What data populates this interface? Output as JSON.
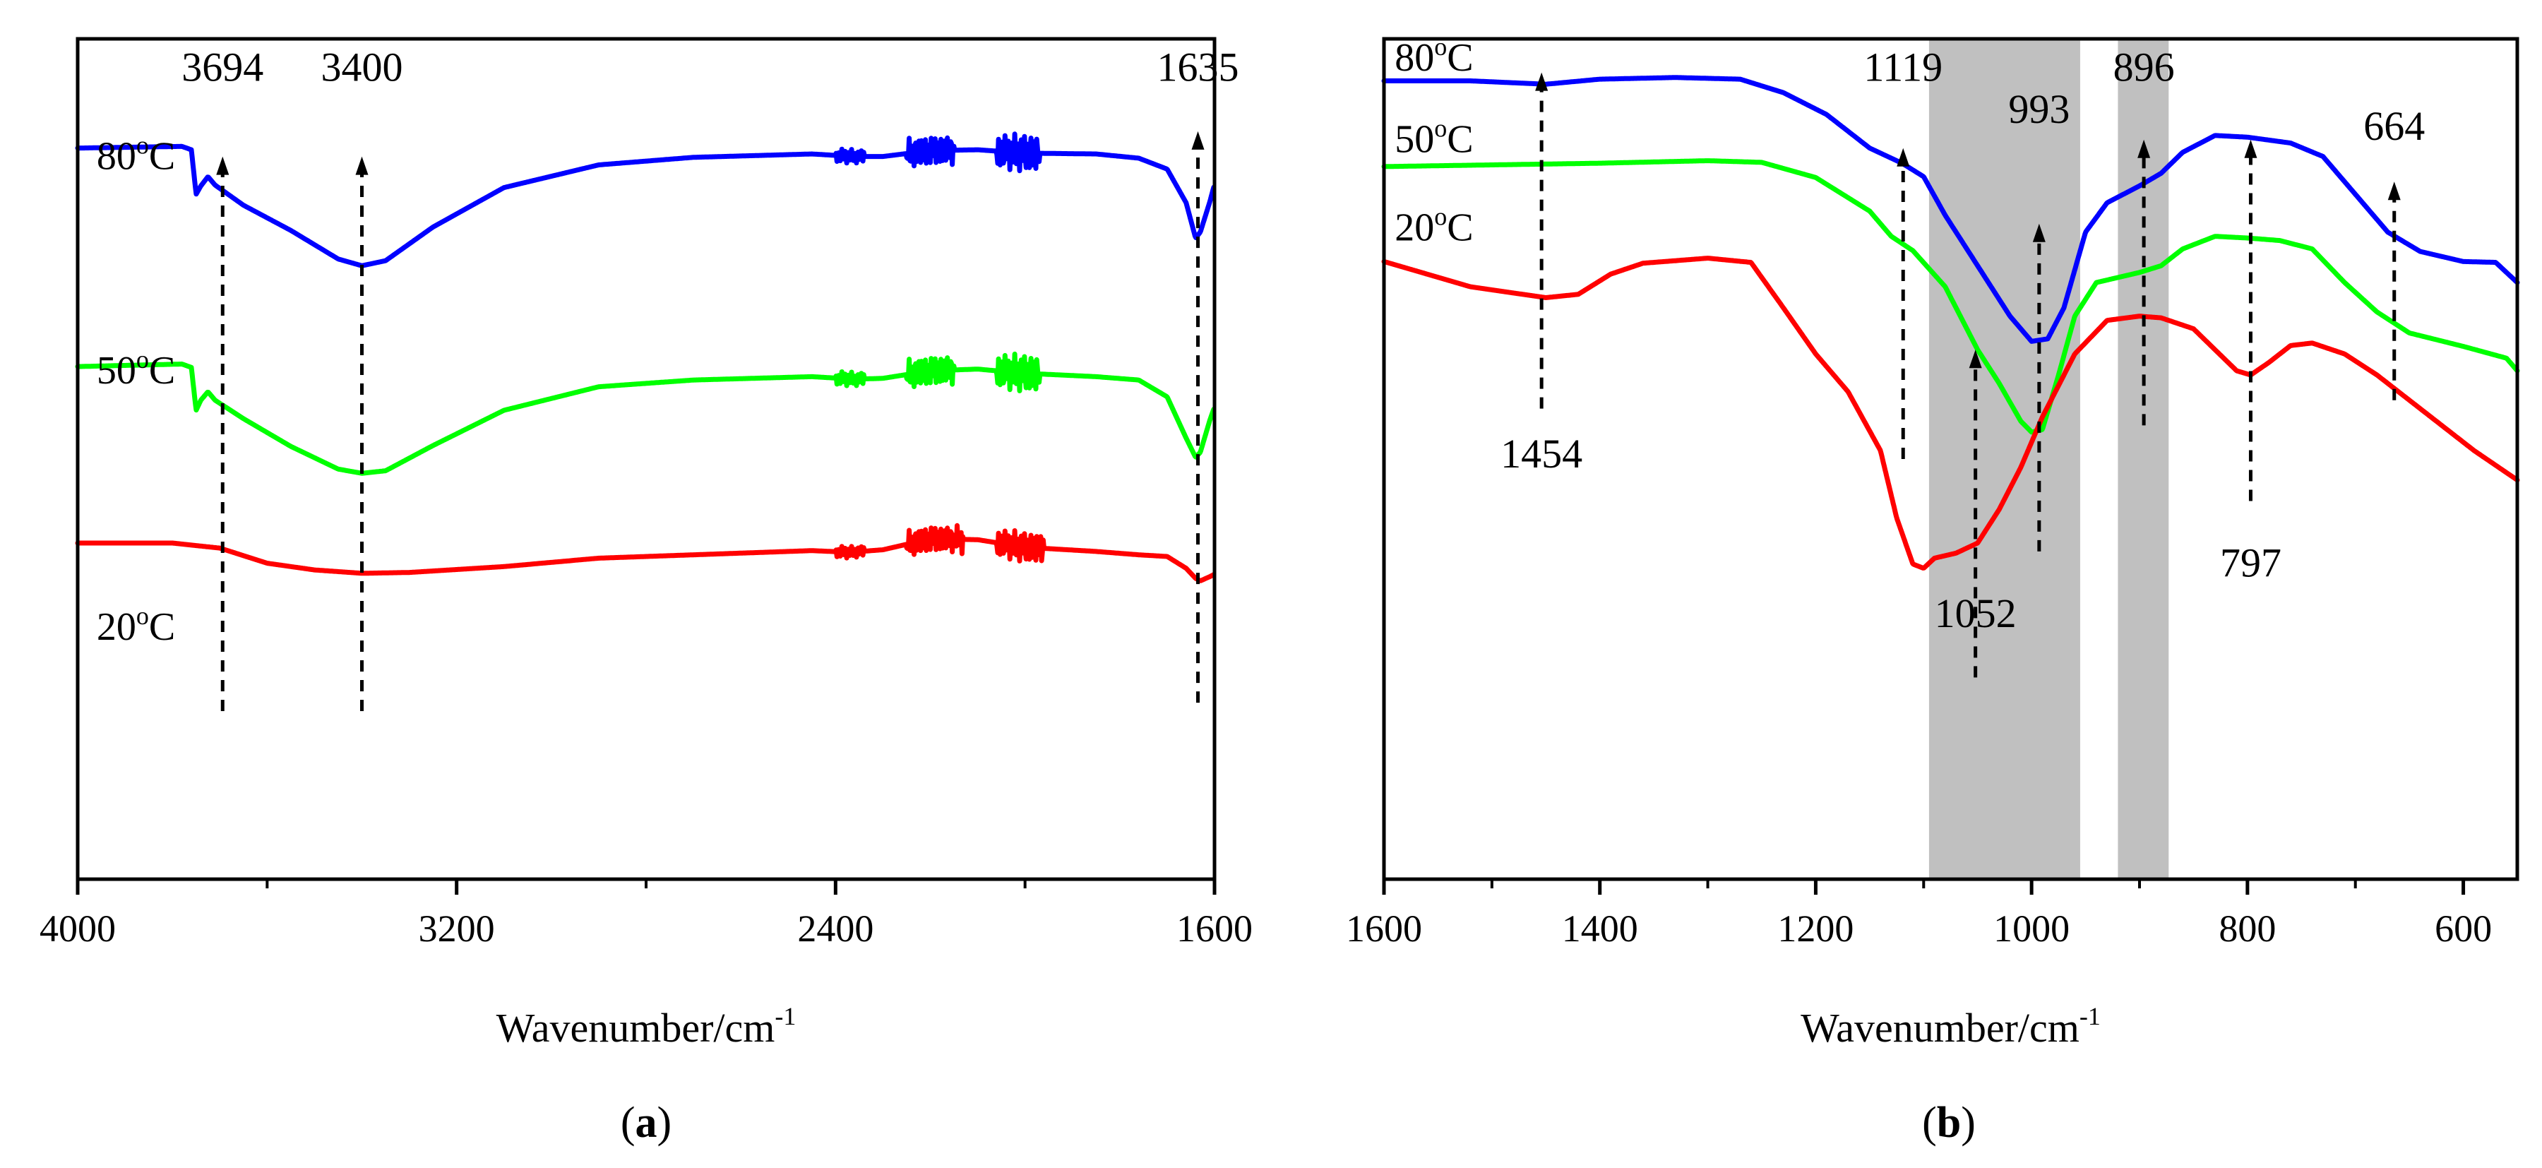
{
  "chart_data": [
    {
      "panel": "(a)",
      "panel_open": "(",
      "panel_letter": "a",
      "panel_close": ")",
      "type": "line",
      "xlabel_main": "Wavenumber/cm",
      "xlabel_sup": "-1",
      "ylabel": "",
      "xlim": [
        4000,
        1600
      ],
      "x_ticks": [
        4000,
        3200,
        2400,
        1600
      ],
      "x_tick_labels": [
        "4000",
        "3200",
        "2400",
        "1600"
      ],
      "x_minor_ticks": [
        3600,
        2800,
        2000
      ],
      "y_ticks_visible": false,
      "ylim": [
        0,
        100
      ],
      "series": [
        {
          "name": "80°C",
          "label_base": "80",
          "label_deg": "o",
          "label_unit": "C",
          "color": "#0000ff",
          "points": [
            [
              4000,
              87
            ],
            [
              3780,
              87.2
            ],
            [
              3760,
              86.8
            ],
            [
              3750,
              81.5
            ],
            [
              3740,
              82.5
            ],
            [
              3725,
              83.6
            ],
            [
              3710,
              82.6
            ],
            [
              3650,
              80.2
            ],
            [
              3550,
              77.2
            ],
            [
              3450,
              73.8
            ],
            [
              3400,
              73.0
            ],
            [
              3350,
              73.6
            ],
            [
              3250,
              77.6
            ],
            [
              3100,
              82.3
            ],
            [
              2900,
              85.0
            ],
            [
              2700,
              85.9
            ],
            [
              2450,
              86.3
            ],
            [
              2360,
              86.0
            ],
            [
              2300,
              86.0
            ],
            [
              2200,
              86.7
            ],
            [
              2100,
              86.8
            ],
            [
              2000,
              86.4
            ],
            [
              1850,
              86.3
            ],
            [
              1760,
              85.8
            ],
            [
              1700,
              84.5
            ],
            [
              1660,
              80.5
            ],
            [
              1640,
              76.3
            ],
            [
              1630,
              77.0
            ],
            [
              1610,
              80.6
            ],
            [
              1600,
              82.7
            ]
          ],
          "noise": [
            [
              2340,
              2400,
              0.6
            ],
            [
              2150,
              2250,
              1.8
            ],
            [
              1970,
              2060,
              1.6
            ]
          ]
        },
        {
          "name": "50°C",
          "label_base": "50",
          "label_deg": "o",
          "label_unit": "C",
          "color": "#00ff00",
          "points": [
            [
              4000,
              61
            ],
            [
              3780,
              61.3
            ],
            [
              3760,
              60.9
            ],
            [
              3750,
              55.8
            ],
            [
              3740,
              57.0
            ],
            [
              3725,
              58.0
            ],
            [
              3710,
              57.0
            ],
            [
              3650,
              54.8
            ],
            [
              3550,
              51.5
            ],
            [
              3450,
              48.8
            ],
            [
              3400,
              48.3
            ],
            [
              3350,
              48.6
            ],
            [
              3250,
              51.6
            ],
            [
              3100,
              55.8
            ],
            [
              2900,
              58.6
            ],
            [
              2700,
              59.4
            ],
            [
              2450,
              59.8
            ],
            [
              2360,
              59.5
            ],
            [
              2300,
              59.6
            ],
            [
              2200,
              60.5
            ],
            [
              2100,
              60.7
            ],
            [
              2000,
              60.2
            ],
            [
              1850,
              59.8
            ],
            [
              1760,
              59.4
            ],
            [
              1700,
              57.4
            ],
            [
              1660,
              52.5
            ],
            [
              1640,
              50.2
            ],
            [
              1630,
              50.8
            ],
            [
              1610,
              54.6
            ],
            [
              1600,
              56.2
            ]
          ],
          "noise": [
            [
              2340,
              2400,
              0.6
            ],
            [
              2150,
              2250,
              1.8
            ],
            [
              1970,
              2060,
              1.6
            ]
          ]
        },
        {
          "name": "20°C",
          "label_base": "20",
          "label_deg": "o",
          "label_unit": "C",
          "color": "#ff0000",
          "points": [
            [
              4000,
              40.0
            ],
            [
              3800,
              40.0
            ],
            [
              3700,
              39.4
            ],
            [
              3600,
              37.6
            ],
            [
              3500,
              36.8
            ],
            [
              3400,
              36.4
            ],
            [
              3300,
              36.5
            ],
            [
              3100,
              37.2
            ],
            [
              2900,
              38.2
            ],
            [
              2700,
              38.6
            ],
            [
              2450,
              39.1
            ],
            [
              2370,
              38.9
            ],
            [
              2300,
              39.2
            ],
            [
              2200,
              40.5
            ],
            [
              2100,
              40.4
            ],
            [
              2000,
              39.5
            ],
            [
              1850,
              39.0
            ],
            [
              1760,
              38.6
            ],
            [
              1700,
              38.4
            ],
            [
              1660,
              37.0
            ],
            [
              1640,
              35.8
            ],
            [
              1630,
              35.5
            ],
            [
              1610,
              36.0
            ],
            [
              1600,
              36.3
            ]
          ],
          "noise": [
            [
              2340,
              2400,
              0.5
            ],
            [
              2130,
              2250,
              1.6
            ],
            [
              1960,
              2060,
              1.3
            ]
          ]
        }
      ],
      "annotations": [
        {
          "label": "3694",
          "x": 3694,
          "y_top": 86,
          "y_bottom": 20,
          "direction": "up",
          "label_y": 95
        },
        {
          "label": "3400",
          "x": 3400,
          "y_top": 86,
          "y_bottom": 20,
          "direction": "up",
          "label_y": 95
        },
        {
          "label": "1635",
          "x": 1635,
          "y_top": 89,
          "y_bottom": 21,
          "direction": "up",
          "label_y": 95
        }
      ],
      "series_labels": [
        {
          "series": 0,
          "x": 3960,
          "y": 84.5
        },
        {
          "series": 1,
          "x": 3960,
          "y": 59.0
        },
        {
          "series": 2,
          "x": 3960,
          "y": 28.5
        }
      ]
    },
    {
      "panel": "(b)",
      "panel_open": "(",
      "panel_letter": "b",
      "panel_close": ")",
      "type": "line",
      "xlabel_main": "Wavenumber/cm",
      "xlabel_sup": "-1",
      "ylabel": "",
      "xlim": [
        1600,
        550
      ],
      "x_ticks": [
        1600,
        1400,
        1200,
        1000,
        800,
        600
      ],
      "x_tick_labels": [
        "1600",
        "1400",
        "1200",
        "1000",
        "800",
        "600"
      ],
      "x_minor_ticks": [
        1500,
        1300,
        1100,
        900,
        700
      ],
      "y_ticks_visible": false,
      "ylim": [
        0,
        100
      ],
      "shaded_bands": [
        [
          1095,
          955
        ],
        [
          920,
          873
        ]
      ],
      "series": [
        {
          "name": "80°C",
          "label_base": "80",
          "label_deg": "o",
          "label_unit": "C",
          "color": "#0000ff",
          "points": [
            [
              1600,
              95.0
            ],
            [
              1520,
              95.0
            ],
            [
              1450,
              94.6
            ],
            [
              1400,
              95.2
            ],
            [
              1330,
              95.4
            ],
            [
              1270,
              95.2
            ],
            [
              1230,
              93.6
            ],
            [
              1190,
              91.0
            ],
            [
              1150,
              87.0
            ],
            [
              1120,
              85.2
            ],
            [
              1100,
              83.6
            ],
            [
              1080,
              79.0
            ],
            [
              1050,
              73.0
            ],
            [
              1020,
              67.0
            ],
            [
              1000,
              64.0
            ],
            [
              985,
              64.3
            ],
            [
              970,
              68.0
            ],
            [
              950,
              77.0
            ],
            [
              930,
              80.5
            ],
            [
              900,
              82.5
            ],
            [
              880,
              84.0
            ],
            [
              860,
              86.5
            ],
            [
              830,
              88.5
            ],
            [
              800,
              88.3
            ],
            [
              760,
              87.6
            ],
            [
              730,
              86.0
            ],
            [
              700,
              81.5
            ],
            [
              670,
              77.0
            ],
            [
              640,
              74.7
            ],
            [
              600,
              73.5
            ],
            [
              570,
              73.4
            ],
            [
              550,
              71.0
            ]
          ]
        },
        {
          "name": "50°C",
          "label_base": "50",
          "label_deg": "o",
          "label_unit": "C",
          "color": "#00ff00",
          "points": [
            [
              1600,
              84.8
            ],
            [
              1500,
              85.0
            ],
            [
              1400,
              85.2
            ],
            [
              1300,
              85.5
            ],
            [
              1250,
              85.3
            ],
            [
              1200,
              83.5
            ],
            [
              1150,
              79.5
            ],
            [
              1130,
              76.5
            ],
            [
              1110,
              74.8
            ],
            [
              1080,
              70.5
            ],
            [
              1050,
              63.0
            ],
            [
              1030,
              59.0
            ],
            [
              1010,
              54.5
            ],
            [
              1000,
              53.2
            ],
            [
              990,
              53.5
            ],
            [
              975,
              60.0
            ],
            [
              960,
              67.0
            ],
            [
              940,
              71.0
            ],
            [
              920,
              71.6
            ],
            [
              900,
              72.2
            ],
            [
              880,
              73.0
            ],
            [
              860,
              75.0
            ],
            [
              830,
              76.5
            ],
            [
              800,
              76.3
            ],
            [
              770,
              76.0
            ],
            [
              740,
              75.0
            ],
            [
              710,
              71.0
            ],
            [
              680,
              67.5
            ],
            [
              650,
              65.0
            ],
            [
              600,
              63.4
            ],
            [
              560,
              62.0
            ],
            [
              550,
              60.5
            ]
          ]
        },
        {
          "name": "20°C",
          "label_base": "20",
          "label_deg": "o",
          "label_unit": "C",
          "color": "#ff0000",
          "points": [
            [
              1600,
              73.5
            ],
            [
              1520,
              70.5
            ],
            [
              1450,
              69.2
            ],
            [
              1420,
              69.6
            ],
            [
              1390,
              72.0
            ],
            [
              1360,
              73.3
            ],
            [
              1300,
              73.9
            ],
            [
              1260,
              73.4
            ],
            [
              1230,
              68.0
            ],
            [
              1200,
              62.5
            ],
            [
              1170,
              58.0
            ],
            [
              1140,
              51.0
            ],
            [
              1125,
              43.0
            ],
            [
              1110,
              37.5
            ],
            [
              1100,
              37.0
            ],
            [
              1090,
              38.2
            ],
            [
              1070,
              38.8
            ],
            [
              1050,
              40.0
            ],
            [
              1030,
              44.0
            ],
            [
              1010,
              49.0
            ],
            [
              990,
              55.0
            ],
            [
              960,
              62.5
            ],
            [
              930,
              66.5
            ],
            [
              900,
              67.0
            ],
            [
              880,
              66.8
            ],
            [
              850,
              65.5
            ],
            [
              830,
              63.0
            ],
            [
              810,
              60.5
            ],
            [
              797,
              60.0
            ],
            [
              780,
              61.5
            ],
            [
              760,
              63.5
            ],
            [
              740,
              63.8
            ],
            [
              710,
              62.5
            ],
            [
              680,
              60.0
            ],
            [
              650,
              57.0
            ],
            [
              620,
              54.0
            ],
            [
              590,
              51.0
            ],
            [
              550,
              47.5
            ]
          ]
        }
      ],
      "annotations": [
        {
          "label": "1454",
          "x": 1454,
          "y_top": 96,
          "y_bottom": 56,
          "direction": "up",
          "label_y": 49
        },
        {
          "label": "1119",
          "x": 1119,
          "y_top": 87,
          "y_bottom": 50,
          "direction": "up",
          "label_y": 95
        },
        {
          "label": "1052",
          "x": 1052,
          "y_top": 63,
          "y_bottom": 24,
          "direction": "up",
          "label_y": 30
        },
        {
          "label": "993",
          "x": 993,
          "y_top": 78,
          "y_bottom": 39,
          "direction": "up",
          "label_y": 90
        },
        {
          "label": "896",
          "x": 896,
          "y_top": 88,
          "y_bottom": 54,
          "direction": "up",
          "label_y": 95
        },
        {
          "label": "797",
          "x": 797,
          "y_top": 88,
          "y_bottom": 45,
          "direction": "up",
          "label_y": 36
        },
        {
          "label": "664",
          "x": 664,
          "y_top": 83,
          "y_bottom": 57,
          "direction": "up",
          "label_y": 88
        }
      ],
      "series_labels": [
        {
          "series": 0,
          "x": 1590,
          "y": 96.2
        },
        {
          "series": 1,
          "x": 1590,
          "y": 86.5
        },
        {
          "series": 2,
          "x": 1590,
          "y": 76.0
        }
      ]
    }
  ]
}
